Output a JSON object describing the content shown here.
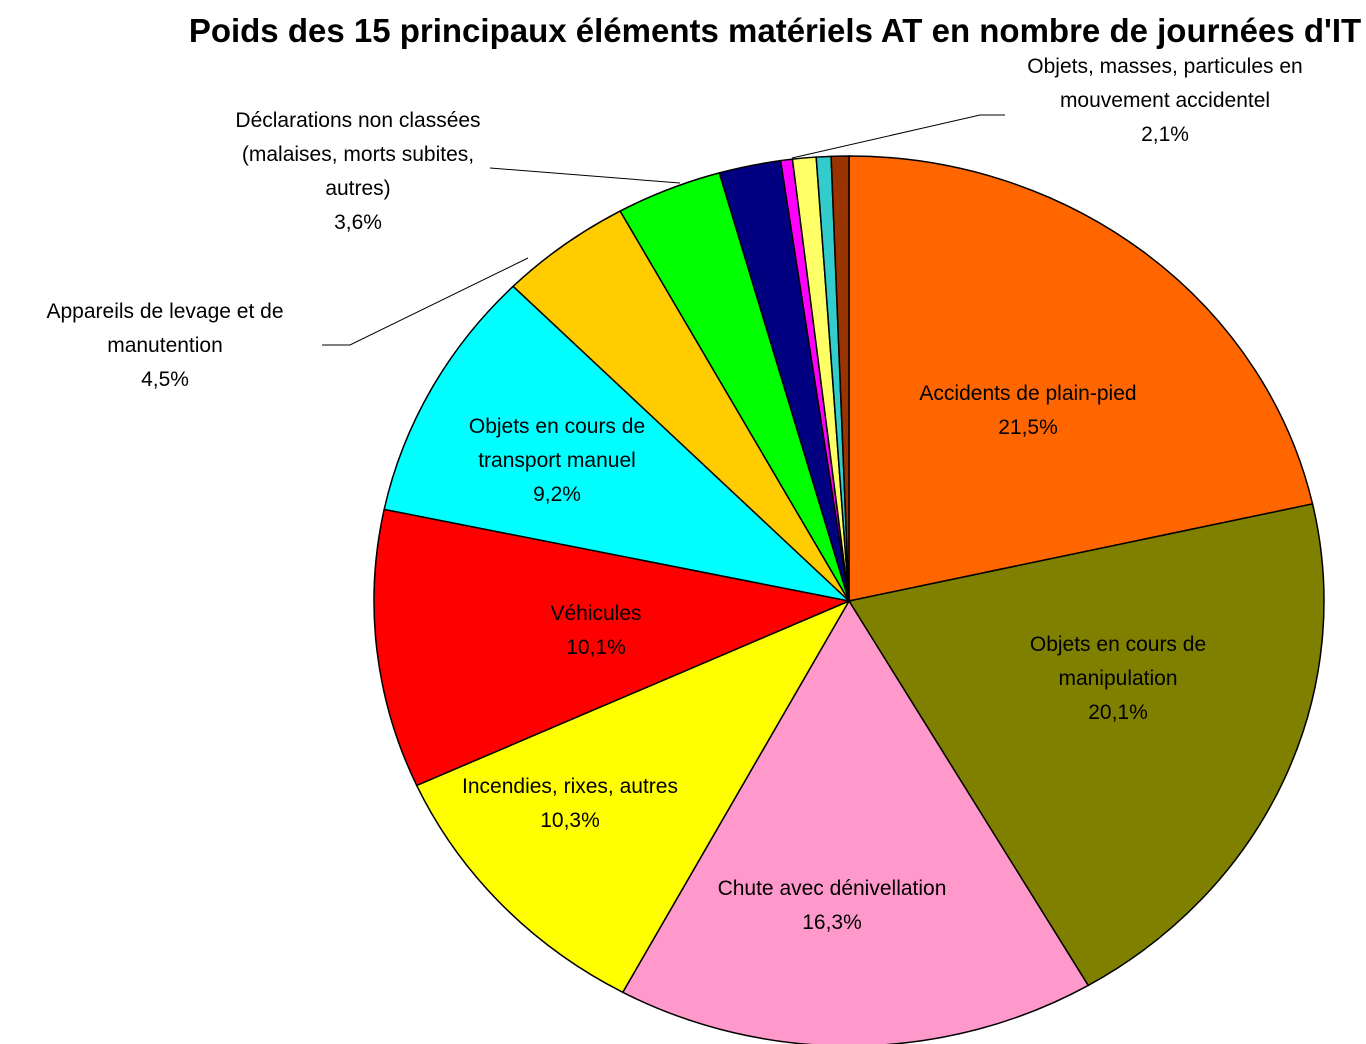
{
  "chart_data": {
    "type": "pie",
    "title": "Poids des 15 principaux éléments matériels AT en nombre de journées d'IT",
    "categories": [
      "Accidents de plain-pied",
      "Objets en cours de manipulation",
      "Chute avec dénivellation",
      "Incendies, rixes, autres",
      "Véhicules",
      "Objets en cours de transport manuel",
      "Appareils de levage et de manutention",
      "Déclarations non classées (malaises, morts subites, autres)",
      "Objets, masses, particules en mouvement accidentel",
      null,
      null,
      null,
      null
    ],
    "values": [
      21.5,
      20.1,
      16.3,
      10.3,
      10.1,
      9.2,
      4.5,
      3.6,
      2.1,
      0.4,
      0.8,
      0.5,
      0.6
    ],
    "value_labels": [
      "21,5%",
      "20,1%",
      "16,3%",
      "10,3%",
      "10,1%",
      "9,2%",
      "4,5%",
      "3,6%",
      "2,1%",
      null,
      null,
      null,
      null
    ],
    "colors": [
      "#FF6600",
      "#808000",
      "#FF99CC",
      "#FFFF00",
      "#FF0000",
      "#00FFFF",
      "#FFCC00",
      "#00FF00",
      "#000080",
      "#FF00FF",
      "#FFFF66",
      "#33CCCC",
      "#993300"
    ]
  }
}
